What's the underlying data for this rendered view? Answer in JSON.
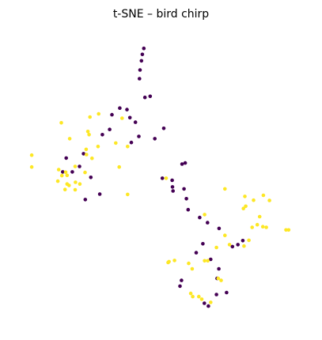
{
  "chart_data": {
    "type": "scatter",
    "title": "t-SNE – bird chirp",
    "xlabel": "",
    "ylabel": "",
    "axes_visible": false,
    "grid": false,
    "legend": "none",
    "xlim": [
      0,
      100
    ],
    "ylim": [
      0,
      100
    ],
    "marker_size": 2.3,
    "series": [
      {
        "color": "#440154",
        "points": [
          [
            44.2,
            94.2
          ],
          [
            43.7,
            92.1
          ],
          [
            43.4,
            89.9
          ],
          [
            42.9,
            86.7
          ],
          [
            42.7,
            83.7
          ],
          [
            46.4,
            77.6
          ],
          [
            44.6,
            77.2
          ],
          [
            35.9,
            73.5
          ],
          [
            38.4,
            73.0
          ],
          [
            33.2,
            71.2
          ],
          [
            39.4,
            70.2
          ],
          [
            41.3,
            68.6
          ],
          [
            32.4,
            66.1
          ],
          [
            51.1,
            66.5
          ],
          [
            29.9,
            64.3
          ],
          [
            42.5,
            63.7
          ],
          [
            48.0,
            62.9
          ],
          [
            39.9,
            61.6
          ],
          [
            23.4,
            57.7
          ],
          [
            17.4,
            56.2
          ],
          [
            58.5,
            54.5
          ],
          [
            57.4,
            54.1
          ],
          [
            22.0,
            53.3
          ],
          [
            19.5,
            51.4
          ],
          [
            16.2,
            51.4
          ],
          [
            25.9,
            49.5
          ],
          [
            50.6,
            49.2
          ],
          [
            54.0,
            48.5
          ],
          [
            54.1,
            46.2
          ],
          [
            54.3,
            44.8
          ],
          [
            58.1,
            45.5
          ],
          [
            29.0,
            43.7
          ],
          [
            58.9,
            42.1
          ],
          [
            24.0,
            41.8
          ],
          [
            59.5,
            38.3
          ],
          [
            63.5,
            35.6
          ],
          [
            66.2,
            33.8
          ],
          [
            70.2,
            31.8
          ],
          [
            78.4,
            27.6
          ],
          [
            76.7,
            26.2
          ],
          [
            74.8,
            25.5
          ],
          [
            64.6,
            26.5
          ],
          [
            62.3,
            23.4
          ],
          [
            67.3,
            21.1
          ],
          [
            70.1,
            17.8
          ],
          [
            69.5,
            14.5
          ],
          [
            57.2,
            13.8
          ],
          [
            56.7,
            11.8
          ],
          [
            72.8,
            9.6
          ],
          [
            69.3,
            8.9
          ],
          [
            65.1,
            5.9
          ],
          [
            66.5,
            4.9
          ]
        ]
      },
      {
        "color": "#fde725",
        "points": [
          [
            28.6,
            71.5
          ],
          [
            25.6,
            70.4
          ],
          [
            36.7,
            70.0
          ],
          [
            15.7,
            68.4
          ],
          [
            24.9,
            65.4
          ],
          [
            25.3,
            64.3
          ],
          [
            18.6,
            62.9
          ],
          [
            28.4,
            60.2
          ],
          [
            34.5,
            61.4
          ],
          [
            38.6,
            60.2
          ],
          [
            24.3,
            59.2
          ],
          [
            24.4,
            57.4
          ],
          [
            5.5,
            57.2
          ],
          [
            26.3,
            56.1
          ],
          [
            20.5,
            53.3
          ],
          [
            35.7,
            53.1
          ],
          [
            5.5,
            53.1
          ],
          [
            14.8,
            52.2
          ],
          [
            17.2,
            51.3
          ],
          [
            17.7,
            50.2
          ],
          [
            23.9,
            51.2
          ],
          [
            15.9,
            50.1
          ],
          [
            14.5,
            48.2
          ],
          [
            51.9,
            49.2
          ],
          [
            20.6,
            47.8
          ],
          [
            17.7,
            47.2
          ],
          [
            18.4,
            46.7
          ],
          [
            22.1,
            47.2
          ],
          [
            17.0,
            45.3
          ],
          [
            20.5,
            45.2
          ],
          [
            38.6,
            43.6
          ],
          [
            72.2,
            45.5
          ],
          [
            79.1,
            42.9
          ],
          [
            85.5,
            43.3
          ],
          [
            82.1,
            41.6
          ],
          [
            79.4,
            39.5
          ],
          [
            87.6,
            41.5
          ],
          [
            78.6,
            38.7
          ],
          [
            65.2,
            36.6
          ],
          [
            84.2,
            35.9
          ],
          [
            83.4,
            33.1
          ],
          [
            81.6,
            32.2
          ],
          [
            85.3,
            32.4
          ],
          [
            86.5,
            32.2
          ],
          [
            93.3,
            31.3
          ],
          [
            94.2,
            31.3
          ],
          [
            72.2,
            29.4
          ],
          [
            80.5,
            27.7
          ],
          [
            78.8,
            25.7
          ],
          [
            73.8,
            26.2
          ],
          [
            69.3,
            25.2
          ],
          [
            54.8,
            20.7
          ],
          [
            52.9,
            20.3
          ],
          [
            52.6,
            20.0
          ],
          [
            59.7,
            19.7
          ],
          [
            66.3,
            20.6
          ],
          [
            65.2,
            20.6
          ],
          [
            60.9,
            17.8
          ],
          [
            69.9,
            14.5
          ],
          [
            70.9,
            13.8
          ],
          [
            60.4,
            9.3
          ],
          [
            61.1,
            8.2
          ],
          [
            63.2,
            8.2
          ],
          [
            64.2,
            7.3
          ],
          [
            67.3,
            6.2
          ]
        ]
      }
    ]
  }
}
